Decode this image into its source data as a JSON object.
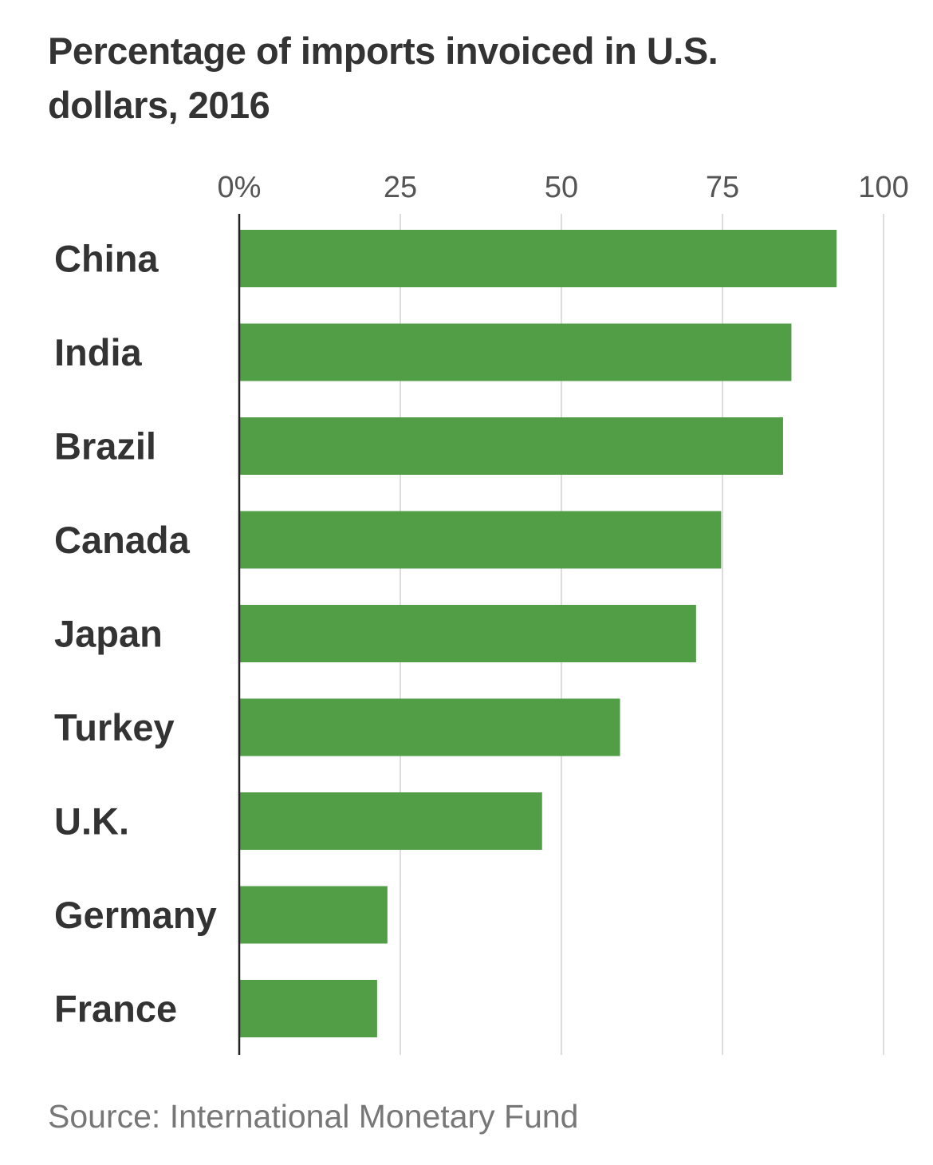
{
  "chart_data": {
    "type": "bar",
    "orientation": "horizontal",
    "title": "Percentage of imports invoiced in U.S. dollars, 2016",
    "categories": [
      "China",
      "India",
      "Brazil",
      "Canada",
      "Japan",
      "Turkey",
      "U.K.",
      "Germany",
      "France"
    ],
    "values": [
      92.7,
      85.7,
      84.4,
      74.8,
      70.9,
      59.1,
      47.0,
      23.0,
      21.4
    ],
    "xlim": [
      0,
      100
    ],
    "x_ticks": [
      0,
      25,
      50,
      75,
      100
    ],
    "x_tick_labels": [
      "0%",
      "25",
      "50",
      "75",
      "100"
    ],
    "xlabel": "",
    "ylabel": "",
    "grid": true,
    "axis_position": "top",
    "bar_color": "#529e47",
    "source": "Source: International Monetary Fund"
  }
}
